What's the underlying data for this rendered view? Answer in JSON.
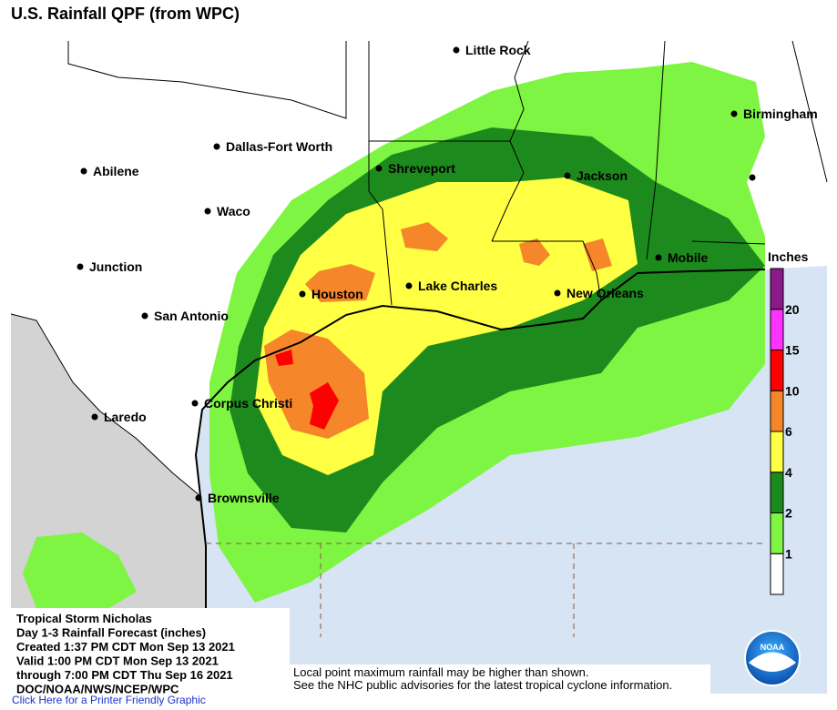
{
  "title": "U.S. Rainfall QPF (from WPC)",
  "cities": [
    "Little Rock",
    "Birmingham",
    "Dallas-Fort Worth",
    "Shreveport",
    "Jackson",
    "Abilene",
    "Waco",
    "Mobile",
    "Junction",
    "Houston",
    "Lake Charles",
    "New Orleans",
    "San Antonio",
    "Corpus Christi",
    "Laredo",
    "Brownsville"
  ],
  "legend": {
    "title": "Inches",
    "ticks": [
      1,
      2,
      4,
      6,
      10,
      15,
      20
    ],
    "colors": [
      "#ffffff",
      "#7ef542",
      "#1d8a1d",
      "#ffff44",
      "#f5862a",
      "#ff0000",
      "#ff33ff",
      "#8b1a8b"
    ]
  },
  "info": [
    "Tropical Storm Nicholas",
    "Day 1-3 Rainfall Forecast (inches)",
    "Created 1:37 PM CDT Mon Sep 13 2021",
    "Valid 1:00 PM CDT Mon Sep 13 2021",
    "through 7:00 PM CDT Thu Sep 16 2021",
    "DOC/NOAA/NWS/NCEP/WPC"
  ],
  "notes": [
    "Local point maximum rainfall may be higher than shown.",
    "See the NHC public advisories for the latest tropical cyclone information."
  ],
  "logo_text": "NOAA",
  "link": "Click Here for a Printer Friendly Graphic"
}
